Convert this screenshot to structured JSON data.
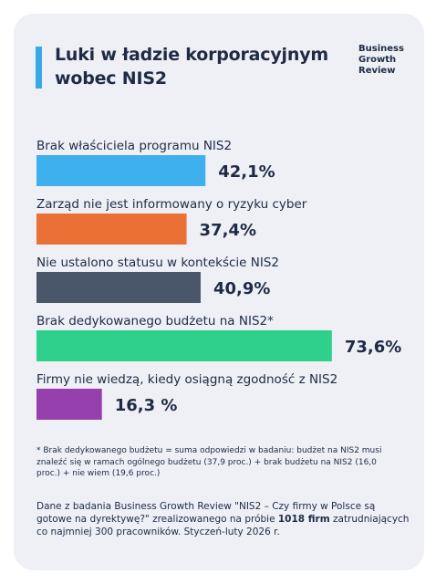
{
  "header": {
    "title_line1": "Luki w ładzie korporacyjnym",
    "title_line2": "wobec NIS2",
    "brand_line1": "Business",
    "brand_line2": "Growth",
    "brand_line3": "Review",
    "accent_color": "#3aa8e8"
  },
  "chart_data": {
    "type": "bar",
    "orientation": "horizontal",
    "title": "Luki w ładzie korporacyjnym wobec NIS2",
    "categories": [
      "Brak właściciela programu NIS2",
      "Zarząd nie jest informowany o ryzyku cyber",
      "Nie ustalono statusu w kontekście NIS2",
      "Brak dedykowanego budżetu na NIS2*",
      "Firmy nie wiedzą, kiedy osiągną zgodność z NIS2"
    ],
    "values": [
      42.1,
      37.4,
      40.9,
      73.6,
      16.3
    ],
    "value_labels": [
      "42,1%",
      "37,4%",
      "40,9%",
      "73,6%",
      "16,3 %"
    ],
    "colors": [
      "#3fb0ee",
      "#ea7035",
      "#4a5669",
      "#2fd08b",
      "#9640ad"
    ],
    "xlim": [
      0,
      100
    ],
    "grid": false,
    "legend": "none"
  },
  "footnote": "* Brak dedykowanego budżetu = suma odpowiedzi w badaniu: budżet na NIS2 musi znaleźć się w ramach ogólnego budżetu (37,9 proc.) + brak budżetu na NIS2 (16,0 proc.) + nie wiem (19,6 proc.)",
  "source": {
    "before": "Dane z badania Business Growth Review \"NIS2 – Czy firmy w Polsce są gotowe na dyrektywę?\" zrealizowanego na próbie ",
    "bold": "1018 firm",
    "after": " zatrudniających co najmniej 300 pracowników. Styczeń-luty 2026 r."
  }
}
